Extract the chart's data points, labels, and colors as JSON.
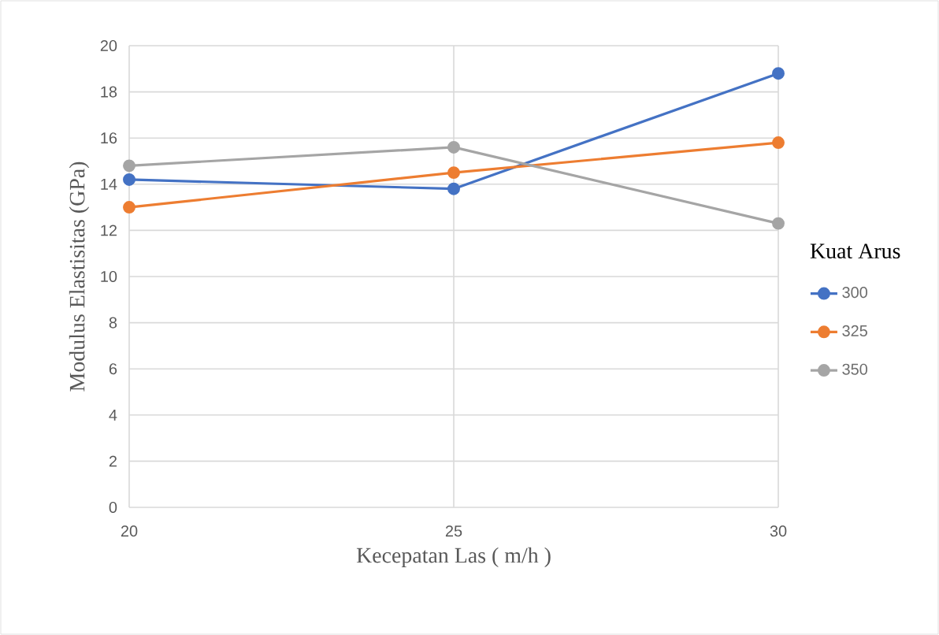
{
  "chart_data": {
    "type": "line",
    "xlabel": "Kecepatan Las ( m/h )",
    "ylabel": "Modulus Elastisitas  (GPa)",
    "legend_title": "Kuat Arus",
    "x": [
      20,
      25,
      30
    ],
    "xlim": [
      20,
      30
    ],
    "xticks": [
      20,
      25,
      30
    ],
    "ylim": [
      0,
      20
    ],
    "yticks": [
      0,
      2,
      4,
      6,
      8,
      10,
      12,
      14,
      16,
      18,
      20
    ],
    "grid": true,
    "legend": "right",
    "marker": "circle",
    "line_style": "solid",
    "series": [
      {
        "name": "300",
        "color": "#4472c4",
        "values": [
          14.2,
          13.8,
          18.8
        ]
      },
      {
        "name": "325",
        "color": "#ed7d31",
        "values": [
          13.0,
          14.5,
          15.8
        ]
      },
      {
        "name": "350",
        "color": "#a5a5a5",
        "values": [
          14.8,
          15.6,
          12.3
        ]
      }
    ]
  }
}
